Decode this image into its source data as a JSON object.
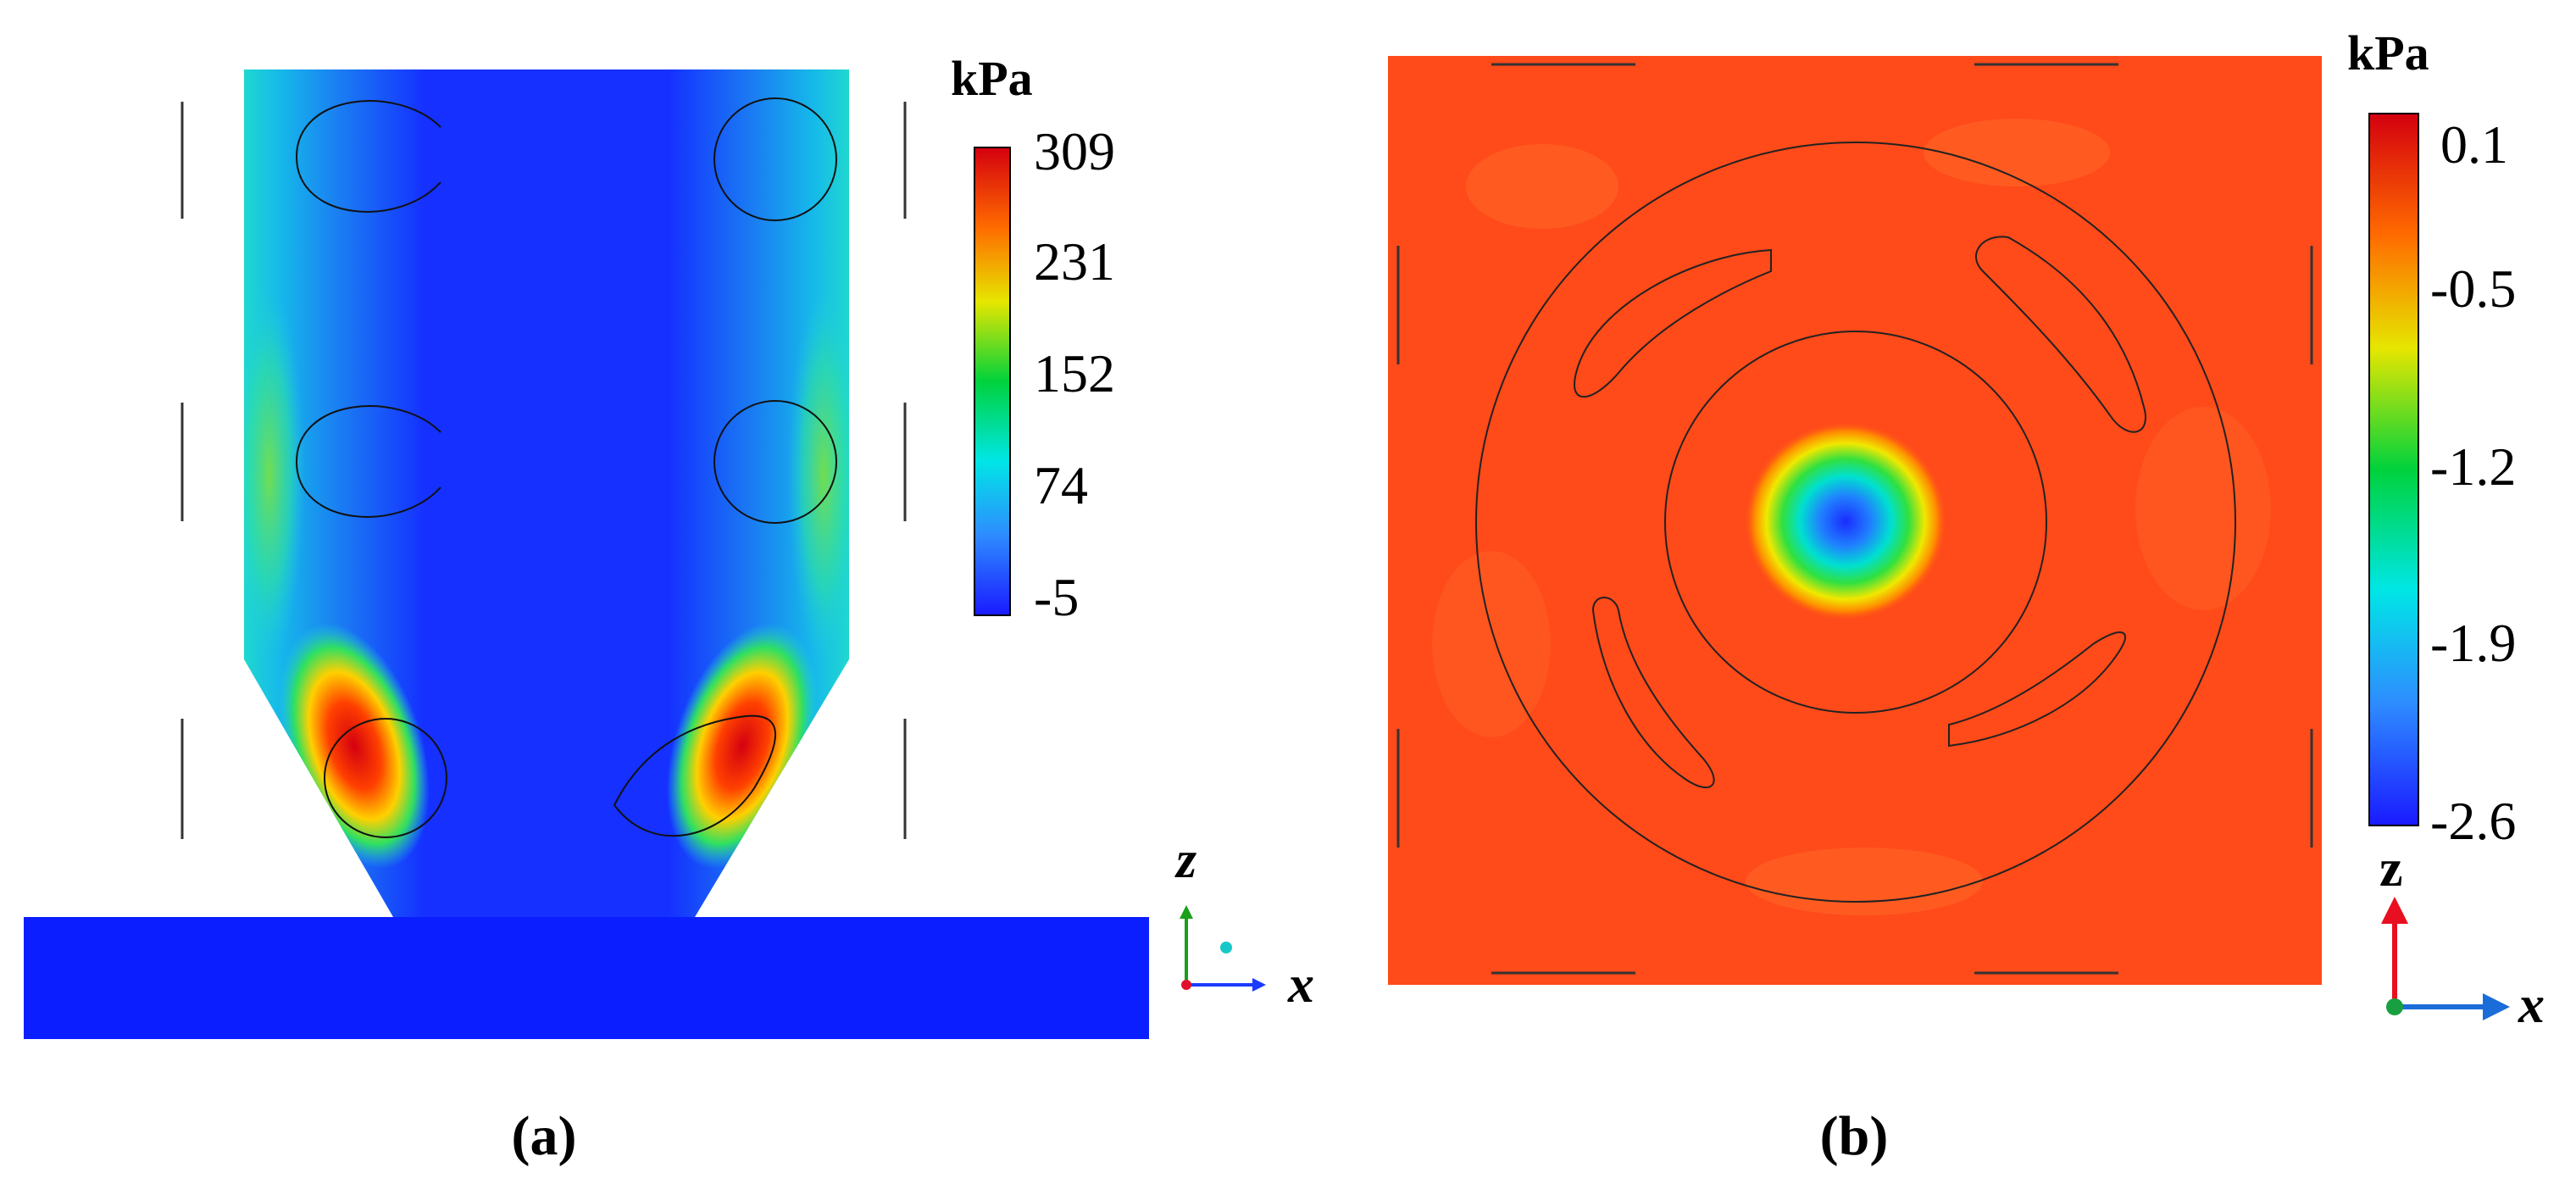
{
  "panel_a": {
    "caption": "(a)",
    "colorbar": {
      "unit": "kPa",
      "ticks": [
        "309",
        "231",
        "152",
        "74",
        "-5"
      ],
      "colors": [
        "#d4000f",
        "#ff6a00",
        "#e6e600",
        "#00d23c",
        "#00e6e6",
        "#2e8bff",
        "#1a1aff"
      ]
    },
    "axes": {
      "vertical": "z",
      "horizontal": "x"
    }
  },
  "panel_b": {
    "caption": "(b)",
    "colorbar": {
      "unit": "kPa",
      "ticks": [
        "0.1",
        "-0.5",
        "-1.2",
        "-1.9",
        "-2.6"
      ],
      "colors": [
        "#d4000f",
        "#ff6a00",
        "#e6e600",
        "#00d23c",
        "#00e6e6",
        "#2e8bff",
        "#1a1aff"
      ]
    },
    "axes": {
      "vertical": "z",
      "horizontal": "x"
    }
  },
  "colors": {
    "field_blue": "#0a1eff",
    "field_orange": "#ff4a1a",
    "contour": "#111111"
  }
}
